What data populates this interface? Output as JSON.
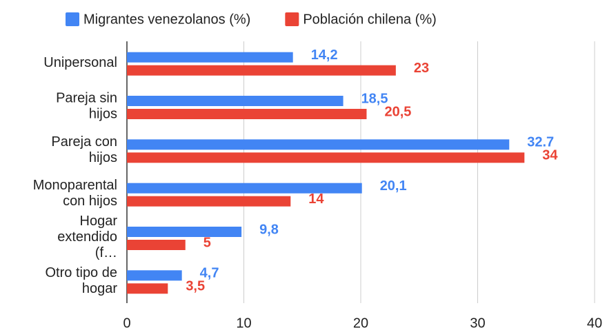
{
  "chart_data": {
    "type": "hbar",
    "categories": [
      "Unipersonal",
      "Pareja sin hijos",
      "Pareja con hijos",
      "Monoparental con hijos",
      "Hogar extendido (f…",
      "Otro tipo de hogar"
    ],
    "series": [
      {
        "name": "Migrantes venezolanos (%)",
        "color": "#4285f4",
        "values": [
          14.2,
          18.5,
          32.7,
          20.1,
          9.8,
          4.7
        ],
        "value_labels": [
          "14,2",
          "18,5",
          "32.7",
          "20,1",
          "9,8",
          "4,7"
        ]
      },
      {
        "name": "Población chilena (%)",
        "color": "#ea4335",
        "values": [
          23,
          20.5,
          34,
          14,
          5,
          3.5
        ],
        "value_labels": [
          "23",
          "20,5",
          "34",
          "14",
          "5",
          "3,5"
        ]
      }
    ],
    "xlim": [
      0,
      40
    ],
    "xticks": [
      0,
      10,
      20,
      30,
      40
    ],
    "grid": true,
    "legend": "top"
  }
}
